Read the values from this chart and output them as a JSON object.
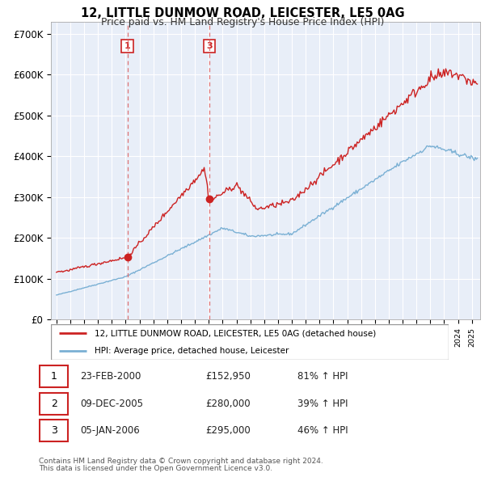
{
  "title": "12, LITTLE DUNMOW ROAD, LEICESTER, LE5 0AG",
  "subtitle": "Price paid vs. HM Land Registry's House Price Index (HPI)",
  "ytick_values": [
    0,
    100000,
    200000,
    300000,
    400000,
    500000,
    600000,
    700000
  ],
  "ytick_labels": [
    "£0",
    "£100K",
    "£200K",
    "£300K",
    "£400K",
    "£500K",
    "£600K",
    "£700K"
  ],
  "ylim": [
    0,
    730000
  ],
  "xlim": [
    1994.6,
    2025.6
  ],
  "red_color": "#cc2222",
  "blue_color": "#7ab0d4",
  "dash_color": "#dd6666",
  "plot_bg": "#e8eef8",
  "grid_color": "#ffffff",
  "transactions": [
    {
      "num": "1",
      "x": 2000.12,
      "price": 152950,
      "dot": true,
      "dashed": true
    },
    {
      "num": "2",
      "x": 2005.92,
      "price": 280000,
      "dot": false,
      "dashed": false
    },
    {
      "num": "3",
      "x": 2006.04,
      "price": 295000,
      "dot": true,
      "dashed": true
    }
  ],
  "legend_line1": "12, LITTLE DUNMOW ROAD, LEICESTER, LE5 0AG (detached house)",
  "legend_line2": "HPI: Average price, detached house, Leicester",
  "table": [
    {
      "num": "1",
      "date": "23-FEB-2000",
      "price": "£152,950",
      "hpi": "81% ↑ HPI"
    },
    {
      "num": "2",
      "date": "09-DEC-2005",
      "price": "£280,000",
      "hpi": "39% ↑ HPI"
    },
    {
      "num": "3",
      "date": "05-JAN-2006",
      "price": "£295,000",
      "hpi": "46% ↑ HPI"
    }
  ],
  "footnote1": "Contains HM Land Registry data © Crown copyright and database right 2024.",
  "footnote2": "This data is licensed under the Open Government Licence v3.0."
}
